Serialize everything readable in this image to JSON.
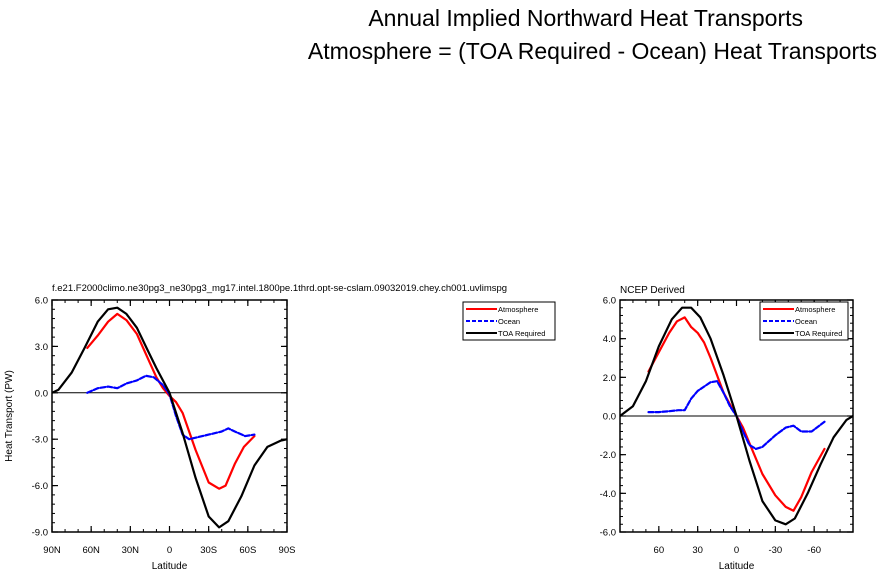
{
  "figure": {
    "title_line1": "Annual Implied Northward Heat Transports",
    "title_line2": "Atmosphere = (TOA Required - Ocean) Heat Transports"
  },
  "chart_data": [
    {
      "type": "line",
      "title": "f.e21.F2000climo.ne30pg3_ne30pg3_mg17.intel.1800pe.1thrd.opt-se-cslam.09032019.chey.ch001.uvlimspg",
      "xlabel": "Latitude",
      "ylabel": "Heat Transport (PW)",
      "xlim": [
        90,
        -90
      ],
      "ylim": [
        -9,
        6
      ],
      "xticks": [
        90,
        60,
        30,
        0,
        -30,
        -60,
        -90
      ],
      "xtick_labels": [
        "90N",
        "60N",
        "30N",
        "0",
        "30S",
        "60S",
        "90S"
      ],
      "yticks": [
        -9,
        -6,
        -3,
        0,
        3,
        6
      ],
      "ytick_labels": [
        "-9.0",
        "-6.0",
        "-3.0",
        "0.0",
        "3.0",
        "6.0"
      ],
      "legend": "top-right outside",
      "series": [
        {
          "name": "Atmosphere",
          "color": "#ff0000",
          "dash": "solid",
          "x": [
            63,
            55,
            47,
            40,
            33,
            25,
            17,
            10,
            5,
            0,
            -5,
            -10,
            -20,
            -30,
            -38,
            -43,
            -50,
            -57,
            -65
          ],
          "y": [
            2.9,
            3.7,
            4.6,
            5.1,
            4.7,
            3.8,
            2.3,
            1.0,
            0.3,
            -0.2,
            -0.6,
            -1.3,
            -3.7,
            -5.8,
            -6.2,
            -6.0,
            -4.6,
            -3.5,
            -2.8
          ]
        },
        {
          "name": "Ocean",
          "color": "#0000ff",
          "dash": "dashed",
          "x": [
            63,
            55,
            47,
            40,
            33,
            25,
            18,
            12,
            5,
            0,
            -5,
            -10,
            -15,
            -20,
            -30,
            -40,
            -45,
            -50,
            -58,
            -65
          ],
          "y": [
            0.0,
            0.3,
            0.4,
            0.3,
            0.6,
            0.8,
            1.1,
            1.0,
            0.5,
            -0.1,
            -1.5,
            -2.7,
            -3.0,
            -2.9,
            -2.7,
            -2.5,
            -2.3,
            -2.5,
            -2.8,
            -2.7
          ]
        },
        {
          "name": "TOA Required",
          "color": "#000000",
          "dash": "solid",
          "x": [
            90,
            85,
            75,
            65,
            55,
            47,
            40,
            33,
            25,
            17,
            10,
            0,
            -10,
            -20,
            -30,
            -38,
            -45,
            -55,
            -65,
            -75,
            -85,
            -90
          ],
          "y": [
            0.0,
            0.2,
            1.3,
            2.9,
            4.6,
            5.4,
            5.5,
            5.1,
            4.2,
            2.8,
            1.6,
            0.0,
            -2.6,
            -5.5,
            -8.0,
            -8.7,
            -8.3,
            -6.7,
            -4.7,
            -3.5,
            -3.1,
            -3.0
          ]
        }
      ]
    },
    {
      "type": "line",
      "title": "NCEP Derived",
      "xlabel": "Latitude",
      "ylabel": "",
      "xlim": [
        90,
        -90
      ],
      "ylim": [
        -6,
        6
      ],
      "xticks": [
        60,
        30,
        0,
        -30,
        -60
      ],
      "xtick_labels": [
        "60",
        "30",
        "0",
        "-30",
        "-60"
      ],
      "yticks": [
        -6,
        -4,
        -2,
        0,
        2,
        4,
        6
      ],
      "ytick_labels": [
        "-6.0",
        "-4.0",
        "-2.0",
        "0.0",
        "2.0",
        "4.0",
        "6.0"
      ],
      "legend": "top-right inside",
      "series": [
        {
          "name": "Atmosphere",
          "color": "#ff0000",
          "dash": "solid",
          "x": [
            68,
            60,
            52,
            46,
            40,
            35,
            30,
            25,
            20,
            15,
            10,
            5,
            0,
            -5,
            -10,
            -20,
            -30,
            -38,
            -44,
            -50,
            -58,
            -68
          ],
          "y": [
            2.3,
            3.3,
            4.3,
            4.9,
            5.1,
            4.6,
            4.3,
            3.8,
            3.0,
            2.1,
            1.2,
            0.6,
            0.0,
            -0.6,
            -1.4,
            -3.0,
            -4.1,
            -4.7,
            -4.9,
            -4.2,
            -2.9,
            -1.7
          ]
        },
        {
          "name": "Ocean",
          "color": "#0000ff",
          "dash": "dashed",
          "x": [
            68,
            60,
            52,
            45,
            40,
            35,
            30,
            20,
            15,
            10,
            5,
            0,
            -5,
            -10,
            -15,
            -20,
            -30,
            -38,
            -44,
            -50,
            -58,
            -68
          ],
          "y": [
            0.2,
            0.2,
            0.25,
            0.3,
            0.3,
            0.9,
            1.3,
            1.75,
            1.8,
            1.2,
            0.5,
            0.0,
            -0.8,
            -1.5,
            -1.7,
            -1.6,
            -1.0,
            -0.6,
            -0.5,
            -0.8,
            -0.8,
            -0.3
          ]
        },
        {
          "name": "TOA Required",
          "color": "#000000",
          "dash": "solid",
          "x": [
            90,
            80,
            70,
            60,
            50,
            42,
            35,
            28,
            20,
            10,
            0,
            -10,
            -20,
            -30,
            -38,
            -45,
            -55,
            -65,
            -75,
            -85,
            -90
          ],
          "y": [
            0.0,
            0.5,
            1.8,
            3.6,
            5.0,
            5.6,
            5.6,
            5.1,
            4.0,
            2.1,
            0.0,
            -2.3,
            -4.4,
            -5.4,
            -5.6,
            -5.3,
            -4.0,
            -2.5,
            -1.1,
            -0.2,
            0.0
          ]
        }
      ]
    }
  ]
}
